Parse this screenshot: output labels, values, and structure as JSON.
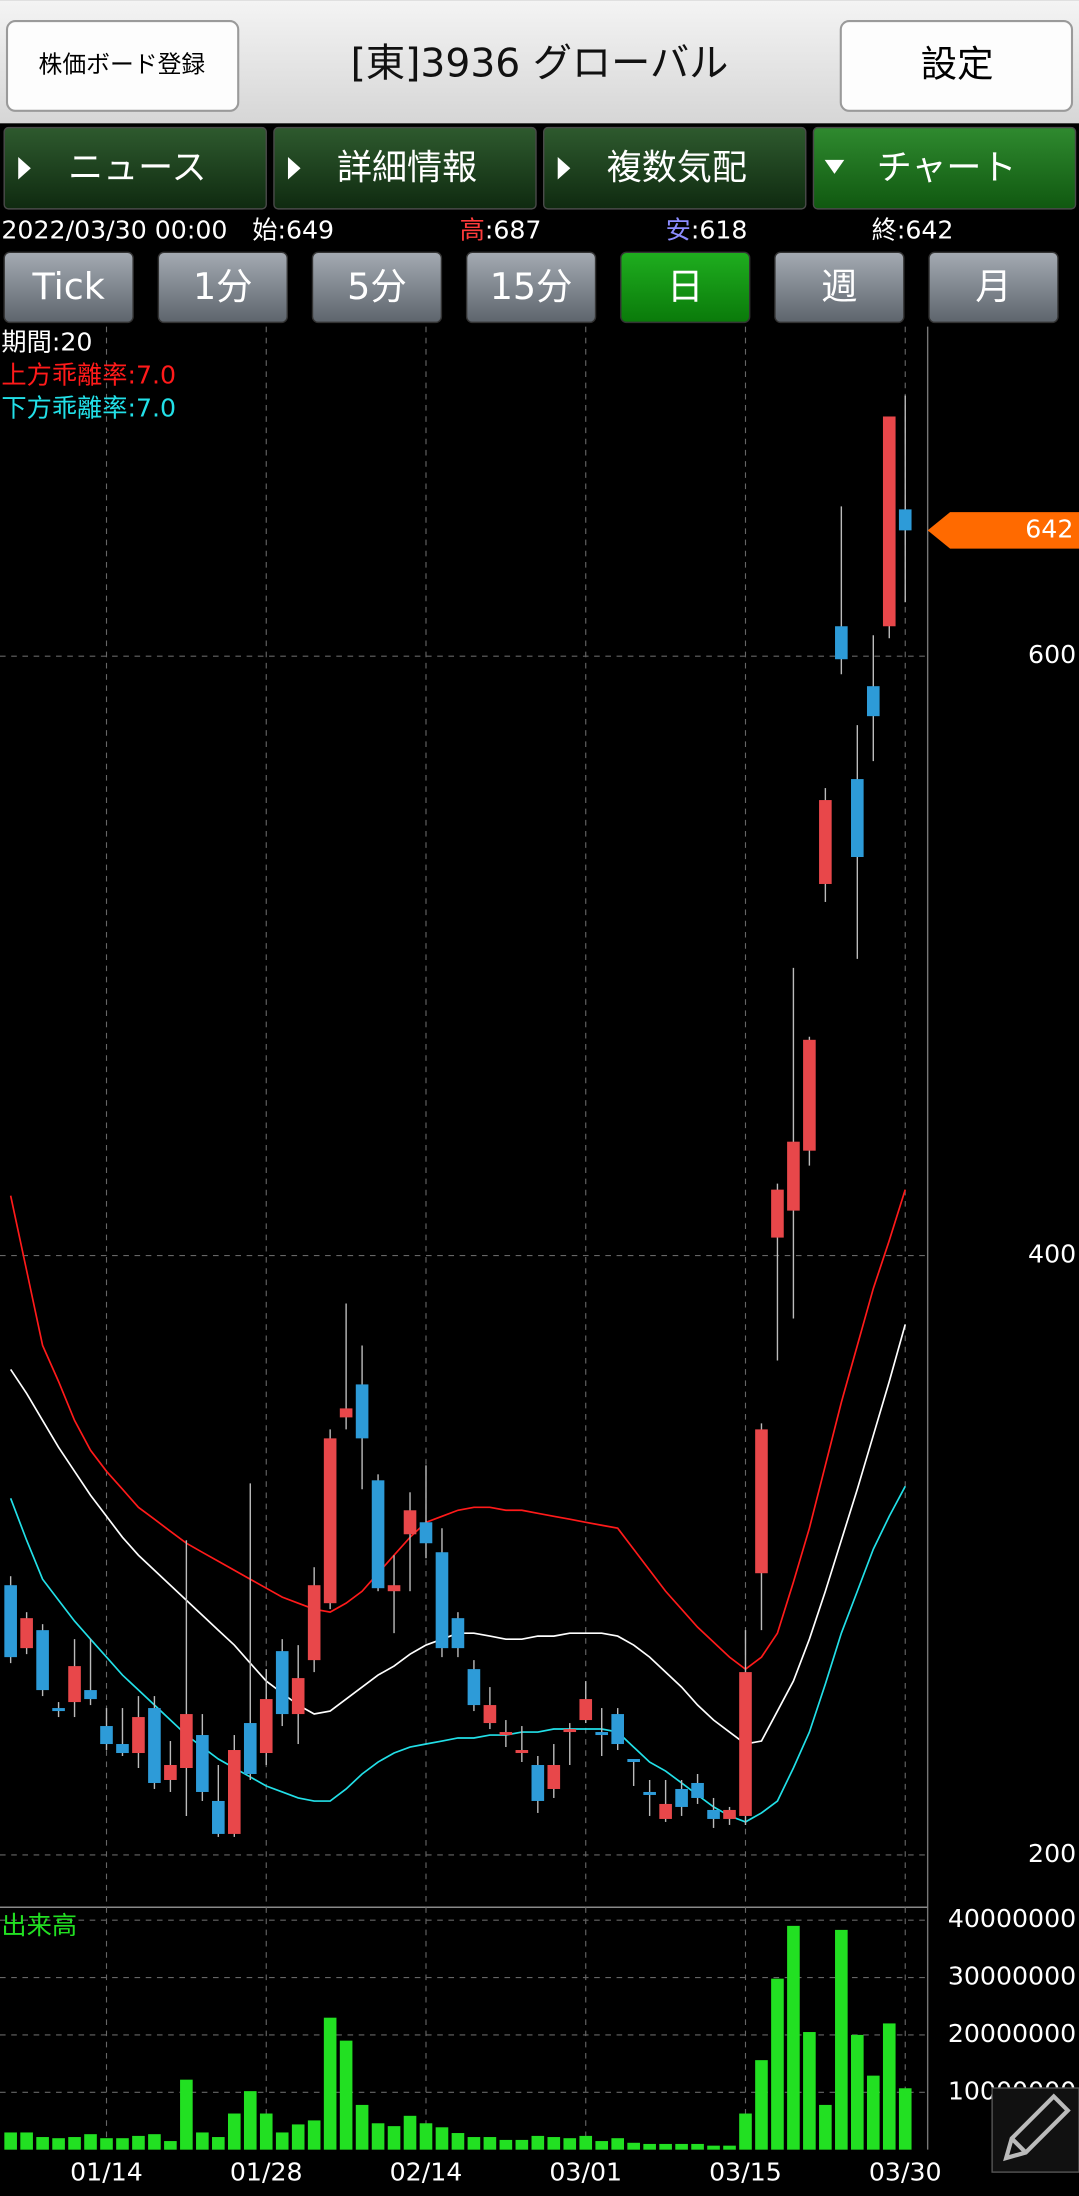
{
  "toolbar": {
    "board_button": "株価ボード登録",
    "title": "[東]3936 グローバル",
    "settings_button": "設定"
  },
  "tabs": [
    "ニュース",
    "詳細情報",
    "複数気配",
    "チャート"
  ],
  "quote": {
    "datetime": "2022/03/30 00:00",
    "separator": ":",
    "items": [
      {
        "label": "始",
        "value": 649,
        "color": "#ffffff"
      },
      {
        "label": "高",
        "value": 687,
        "color": "#ff3b3b"
      },
      {
        "label": "安",
        "value": 618,
        "color": "#8c8cff"
      },
      {
        "label": "終",
        "value": 642,
        "color": "#ffffff"
      }
    ]
  },
  "periods": [
    "Tick",
    "1分",
    "5分",
    "15分",
    "日",
    "週",
    "月"
  ],
  "active_period": 4,
  "chart_data": [
    {
      "type": "candlestick",
      "categories": [
        null,
        null,
        null,
        null,
        null,
        null,
        "01/14",
        null,
        null,
        null,
        null,
        null,
        null,
        null,
        null,
        null,
        "01/28",
        null,
        null,
        null,
        null,
        null,
        null,
        null,
        null,
        null,
        "02/14",
        null,
        null,
        null,
        null,
        null,
        null,
        null,
        null,
        null,
        "03/01",
        null,
        null,
        null,
        null,
        null,
        null,
        null,
        null,
        null,
        "03/15",
        null,
        null,
        null,
        null,
        null,
        null,
        null,
        null,
        null,
        "03/30"
      ],
      "open": [
        290,
        269,
        275,
        249,
        251,
        255,
        243,
        237,
        234,
        249,
        225,
        229,
        240,
        218,
        207,
        244,
        234,
        268,
        247,
        265,
        284,
        346,
        357,
        325,
        288,
        307,
        311,
        301,
        279,
        262,
        244,
        240,
        234,
        230,
        222,
        241,
        245,
        241,
        247,
        232,
        221,
        212,
        222,
        224,
        215,
        212,
        213,
        294,
        406,
        415,
        435,
        524,
        610,
        559,
        590,
        610,
        649
      ],
      "high": [
        293,
        281,
        277,
        251,
        272,
        272,
        249,
        249,
        253,
        253,
        238,
        305,
        247,
        230,
        240,
        324,
        262,
        272,
        270,
        296,
        342,
        384,
        370,
        327,
        300,
        321,
        330,
        309,
        281,
        265,
        256,
        245,
        243,
        233,
        237,
        244,
        258,
        249,
        249,
        232,
        225,
        225,
        225,
        227,
        219,
        216,
        275,
        344,
        424,
        496,
        473,
        556,
        650,
        577,
        607,
        680,
        687
      ],
      "low": [
        264,
        267,
        253,
        246,
        246,
        250,
        235,
        233,
        229,
        222,
        221,
        213,
        218,
        206,
        206,
        225,
        230,
        243,
        237,
        261,
        282,
        342,
        322,
        288,
        274,
        288,
        299,
        266,
        266,
        248,
        242,
        236,
        231,
        214,
        219,
        230,
        244,
        233,
        235,
        223,
        213,
        211,
        213,
        217,
        209,
        210,
        210,
        275,
        365,
        379,
        430,
        518,
        594,
        499,
        565,
        606,
        618
      ],
      "close": [
        266,
        279,
        255,
        248,
        263,
        252,
        237,
        234,
        246,
        224,
        230,
        247,
        221,
        207,
        235,
        227,
        252,
        247,
        259,
        290,
        339,
        349,
        339,
        289,
        290,
        315,
        304,
        269,
        269,
        250,
        250,
        241,
        235,
        218,
        230,
        242,
        252,
        240,
        237,
        231,
        220,
        217,
        216,
        219,
        212,
        215,
        261,
        342,
        422,
        438,
        472,
        552,
        599,
        533,
        580,
        680,
        642
      ],
      "up_color": "#e8474a",
      "down_color": "#2d9bd8",
      "series": [
        {
          "name": "期間:20",
          "color": "#ffffff",
          "values": [
            362,
            354,
            345,
            336,
            328,
            320,
            313,
            306,
            300,
            295,
            290,
            285,
            280,
            275,
            270,
            264,
            258,
            254,
            250,
            247,
            248,
            252,
            256,
            260,
            263,
            267,
            270,
            272,
            274,
            274,
            273,
            272,
            272,
            273,
            273,
            274,
            274,
            274,
            273,
            270,
            266,
            261,
            256,
            250,
            245,
            241,
            237,
            238,
            248,
            258,
            272,
            288,
            305,
            322,
            340,
            358,
            377
          ]
        },
        {
          "name": "上方乖離率:7.0",
          "color": "#ff1a1a",
          "values": [
            420,
            395,
            370,
            358,
            345,
            335,
            328,
            322,
            316,
            312,
            308,
            304,
            301,
            298,
            295,
            292,
            289,
            286,
            284,
            282,
            281,
            284,
            288,
            294,
            300,
            306,
            311,
            313,
            315,
            316,
            316,
            315,
            315,
            314,
            313,
            312,
            311,
            310,
            309,
            302,
            295,
            288,
            282,
            276,
            271,
            266,
            262,
            266,
            274,
            291,
            309,
            330,
            351,
            370,
            389,
            405,
            422
          ]
        },
        {
          "name": "下方乖離率:7.0",
          "color": "#22e0e8",
          "values": [
            319,
            305,
            292,
            285,
            278,
            272,
            266,
            260,
            255,
            250,
            245,
            240,
            236,
            232,
            229,
            226,
            223,
            221,
            219,
            218,
            218,
            222,
            227,
            231,
            234,
            236,
            237,
            238,
            239,
            239,
            240,
            240,
            241,
            241,
            242,
            242,
            242,
            242,
            241,
            236,
            231,
            228,
            224,
            220,
            216,
            213,
            211,
            214,
            218,
            229,
            241,
            257,
            274,
            288,
            302,
            313,
            323
          ]
        }
      ],
      "ylim": [
        183,
        710
      ],
      "yticks": [
        200,
        400,
        600
      ],
      "grid": true,
      "last_price": 642,
      "last_price_color": "#ff6a00"
    },
    {
      "type": "bar",
      "title": "出来高",
      "color": "#22e022",
      "values": [
        3000000,
        3000000,
        2200000,
        2000000,
        2200000,
        2700000,
        2000000,
        2000000,
        2400000,
        2700000,
        1500000,
        12200000,
        3000000,
        2200000,
        6300000,
        10200000,
        6300000,
        3000000,
        4400000,
        5100000,
        23000000,
        19000000,
        7800000,
        4600000,
        4100000,
        5900000,
        4600000,
        3900000,
        2900000,
        2200000,
        2200000,
        1700000,
        1700000,
        2400000,
        2200000,
        2000000,
        2400000,
        1500000,
        2000000,
        1200000,
        1000000,
        1000000,
        1000000,
        1000000,
        700000,
        700000,
        6300000,
        15600000,
        29800000,
        39000000,
        20500000,
        7800000,
        38300000,
        20000000,
        12900000,
        22000000,
        10700000
      ],
      "ylim": [
        0,
        42000000
      ],
      "yticks": [
        10000000,
        20000000,
        30000000,
        40000000
      ],
      "grid": true
    }
  ]
}
